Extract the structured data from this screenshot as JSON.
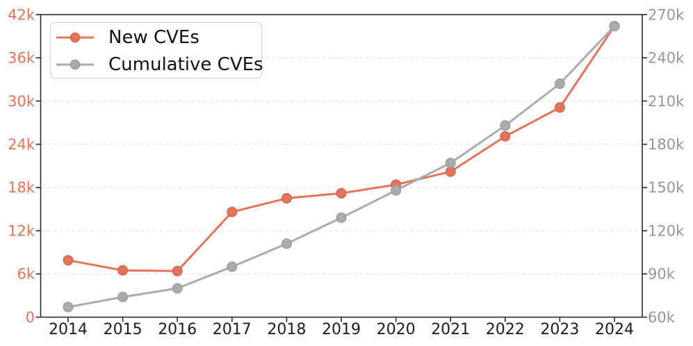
{
  "chart_data": {
    "type": "line",
    "title": "",
    "x_years": [
      "2014",
      "2015",
      "2016",
      "2017",
      "2018",
      "2019",
      "2020",
      "2021",
      "2022",
      "2023",
      "2024"
    ],
    "series": [
      {
        "name": "New CVEs",
        "axis": "left",
        "color": "#e0755c",
        "marker_edge": "#d4654c",
        "values_k": [
          7.9,
          6.5,
          6.4,
          14.6,
          16.5,
          17.2,
          18.4,
          20.2,
          25.1,
          29.1,
          40.4
        ]
      },
      {
        "name": "Cumulative CVEs",
        "axis": "right",
        "color": "#ababab",
        "marker_edge": "#9b9b9b",
        "values_k": [
          67,
          74,
          80,
          95,
          111,
          129,
          148,
          167,
          193,
          222,
          262
        ]
      }
    ],
    "left_axis": {
      "label_color": "#e0755c",
      "range_k": [
        0,
        42
      ],
      "tick_values_k": [
        0,
        6,
        12,
        18,
        24,
        30,
        36,
        42
      ],
      "tick_labels": [
        "0",
        "6k",
        "12k",
        "18k",
        "24k",
        "30k",
        "36k",
        "42k"
      ]
    },
    "right_axis": {
      "label_color": "#969696",
      "range_k": [
        60,
        270
      ],
      "tick_values_k": [
        60,
        90,
        120,
        150,
        180,
        210,
        240,
        270
      ],
      "tick_labels": [
        "60k",
        "90k",
        "120k",
        "150k",
        "180k",
        "210k",
        "240k",
        "270k"
      ]
    },
    "x_axis": {
      "label_color": "#1c1c1c"
    },
    "grid": {
      "show": true,
      "style": "dashed",
      "color": "#e4e4e4"
    },
    "spine_color": "#2b2b2b",
    "legend": {
      "position": "top-left"
    }
  }
}
